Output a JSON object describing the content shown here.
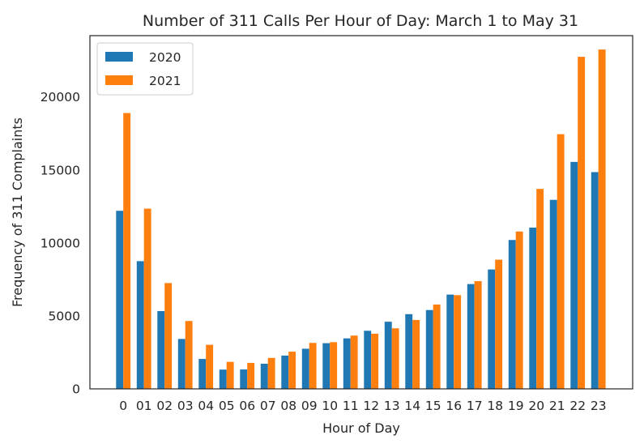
{
  "chart_data": {
    "type": "bar",
    "title": "Number of 311 Calls Per Hour of Day: March 1 to May 31",
    "xlabel": "Hour of Day",
    "ylabel": "Frequency of 311 Complaints",
    "categories": [
      "0",
      "01",
      "02",
      "03",
      "04",
      "05",
      "06",
      "07",
      "08",
      "09",
      "10",
      "11",
      "12",
      "13",
      "14",
      "15",
      "16",
      "17",
      "18",
      "19",
      "20",
      "21",
      "22",
      "23"
    ],
    "series": [
      {
        "name": "2020",
        "color": "#1f77b4",
        "values": [
          12200,
          8750,
          5330,
          3420,
          2050,
          1320,
          1330,
          1720,
          2280,
          2750,
          3130,
          3460,
          3980,
          4600,
          5120,
          5400,
          6460,
          7180,
          8180,
          10200,
          11050,
          12950,
          15550,
          14850
        ]
      },
      {
        "name": "2021",
        "color": "#ff7f0e",
        "values": [
          18900,
          12350,
          7250,
          4650,
          3020,
          1850,
          1780,
          2120,
          2550,
          3150,
          3200,
          3650,
          3780,
          4150,
          4720,
          5780,
          6420,
          7380,
          8850,
          10780,
          13700,
          17450,
          22750,
          23250
        ]
      }
    ],
    "ylim": [
      0,
      24200
    ],
    "yticks": [
      0,
      5000,
      10000,
      15000,
      20000
    ],
    "grid": false,
    "legend_position": "top-left"
  }
}
